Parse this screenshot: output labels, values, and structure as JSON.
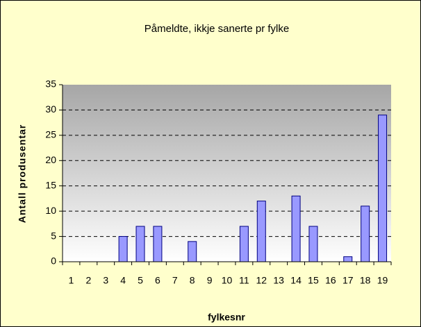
{
  "chart_data": {
    "type": "bar",
    "title": "Påmeldte, ikkje sanerte pr fylke",
    "x_label": "fylkesnr",
    "y_label": "Antall produsentar",
    "categories": [
      "1",
      "2",
      "3",
      "4",
      "5",
      "6",
      "7",
      "8",
      "9",
      "10",
      "11",
      "12",
      "13",
      "14",
      "15",
      "16",
      "17",
      "18",
      "19"
    ],
    "values": [
      0,
      0,
      0,
      5,
      7,
      7,
      0,
      4,
      0,
      0,
      7,
      12,
      0,
      13,
      7,
      0,
      1,
      11,
      29
    ],
    "color": "#9999ff",
    "ylim": [
      0,
      35
    ],
    "yticks": [
      0,
      5,
      10,
      15,
      20,
      25,
      30,
      35
    ],
    "grid": true
  }
}
